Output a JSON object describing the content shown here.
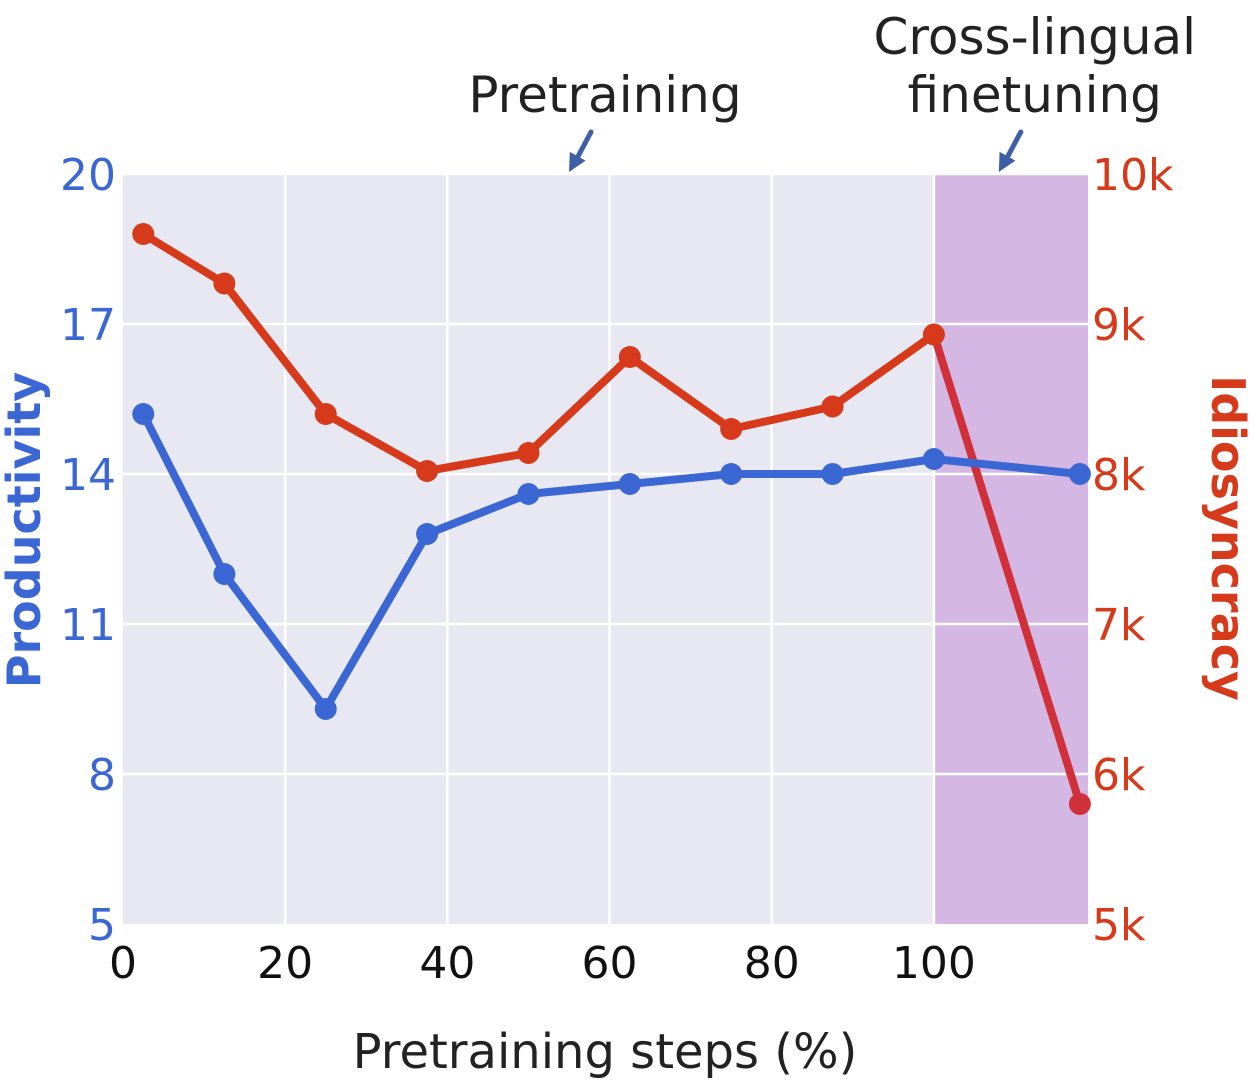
{
  "chart_data": {
    "type": "line",
    "xlabel": "Pretraining steps (%)",
    "ylabel": "Productivity",
    "y2label": "Idiosyncracy",
    "xlim": [
      0,
      119
    ],
    "ylim": [
      5,
      20
    ],
    "y2lim": [
      5000,
      10000
    ],
    "x_ticks": [
      0,
      20,
      40,
      60,
      80,
      100
    ],
    "y_ticks": [
      5,
      8,
      11,
      14,
      17,
      20
    ],
    "y2_ticks": [
      5000,
      6000,
      7000,
      8000,
      9000,
      10000
    ],
    "y2_tick_labels": [
      "5k",
      "6k",
      "7k",
      "8k",
      "9k",
      "10k"
    ],
    "grid": true,
    "series": [
      {
        "name": "Productivity",
        "axis": "left",
        "color": "#3b67d4",
        "x": [
          2.5,
          12.5,
          25,
          37.5,
          50,
          62.5,
          75,
          87.5,
          100,
          118
        ],
        "y": [
          15.2,
          12.0,
          9.3,
          12.8,
          13.6,
          13.8,
          14.0,
          14.0,
          14.3,
          14.0
        ]
      },
      {
        "name": "Idiosyncracy",
        "axis": "right",
        "color": "#d63a1b",
        "finetune_color": "#d0303a",
        "x": [
          2.5,
          12.5,
          25,
          37.5,
          50,
          62.5,
          75,
          87.5,
          100,
          118
        ],
        "y": [
          9600,
          9270,
          8400,
          8020,
          8140,
          8780,
          8300,
          8450,
          8930,
          5800
        ]
      }
    ],
    "regions": [
      {
        "name": "pretraining",
        "x": [
          0,
          100
        ],
        "color": "#e8e8f2"
      },
      {
        "name": "finetuning",
        "x": [
          100,
          119
        ],
        "color": "#d5b7e3"
      }
    ],
    "annotations": [
      {
        "lines": [
          "Pretraining"
        ],
        "arrow_x": 55
      },
      {
        "lines": [
          "Cross-lingual",
          "finetuning"
        ],
        "arrow_x": 108
      }
    ]
  }
}
